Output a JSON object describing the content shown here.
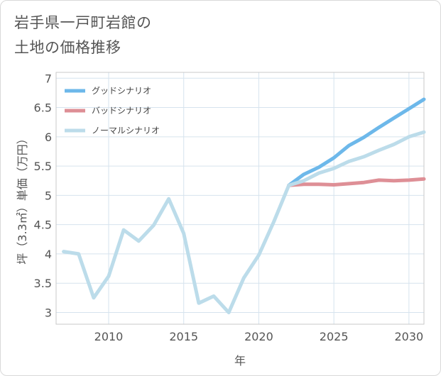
{
  "title_lines": [
    "岩手県一戸町岩館の",
    "土地の価格推移"
  ],
  "chart_data": {
    "type": "line",
    "title": "岩手県一戸町岩館の土地の価格推移",
    "xlabel": "年",
    "ylabel": "坪（3.3㎡）単価（万円）",
    "xlim": [
      2006.5,
      2031
    ],
    "ylim": [
      2.8,
      7.1
    ],
    "x_ticks": [
      2010,
      2015,
      2020,
      2025,
      2030
    ],
    "y_ticks": [
      3,
      3.5,
      4,
      4.5,
      5,
      5.5,
      6,
      6.5,
      7
    ],
    "legend_position": "top-left",
    "series": [
      {
        "name": "グッドシナリオ",
        "color": "#6db8ea",
        "x": [
          2022,
          2023,
          2024,
          2025,
          2026,
          2027,
          2028,
          2029,
          2030,
          2031
        ],
        "y": [
          5.17,
          5.36,
          5.48,
          5.64,
          5.85,
          5.99,
          6.16,
          6.32,
          6.48,
          6.64
        ]
      },
      {
        "name": "バッドシナリオ",
        "color": "#de8f96",
        "x": [
          2022,
          2023,
          2024,
          2025,
          2026,
          2027,
          2028,
          2029,
          2030,
          2031
        ],
        "y": [
          5.17,
          5.19,
          5.19,
          5.18,
          5.2,
          5.22,
          5.26,
          5.25,
          5.26,
          5.28
        ]
      },
      {
        "name": "ノーマルシナリオ",
        "color": "#bcdcea",
        "x": [
          2007,
          2008,
          2009,
          2010,
          2011,
          2012,
          2013,
          2014,
          2015,
          2016,
          2017,
          2018,
          2019,
          2020,
          2021,
          2022,
          2023,
          2024,
          2025,
          2026,
          2027,
          2028,
          2029,
          2030,
          2031
        ],
        "y": [
          4.04,
          4.0,
          3.25,
          3.62,
          4.41,
          4.22,
          4.49,
          4.94,
          4.35,
          3.16,
          3.28,
          3.0,
          3.59,
          3.98,
          4.55,
          5.17,
          5.25,
          5.38,
          5.46,
          5.58,
          5.66,
          5.77,
          5.87,
          6.0,
          6.08
        ]
      }
    ]
  }
}
